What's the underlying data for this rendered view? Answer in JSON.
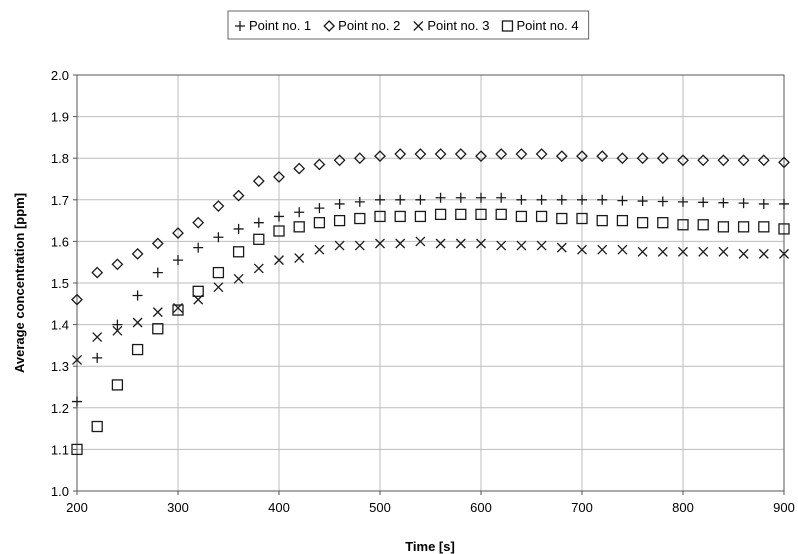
{
  "chart_data": {
    "type": "scatter",
    "title": "",
    "xlabel": "Time [s]",
    "ylabel": "Average concentration [ppm]",
    "xlim": [
      200,
      900
    ],
    "ylim": [
      1.0,
      2.0
    ],
    "x_ticks": [
      "200",
      "300",
      "400",
      "500",
      "600",
      "700",
      "800",
      "900"
    ],
    "y_ticks": [
      "1.0",
      "1.1",
      "1.2",
      "1.3",
      "1.4",
      "1.5",
      "1.6",
      "1.7",
      "1.8",
      "1.9",
      "2.0"
    ],
    "grid": true,
    "legend_position": "top",
    "x": [
      200,
      220,
      240,
      260,
      280,
      300,
      320,
      340,
      360,
      380,
      400,
      420,
      440,
      460,
      480,
      500,
      520,
      540,
      560,
      580,
      600,
      620,
      640,
      660,
      680,
      700,
      720,
      740,
      760,
      780,
      800,
      820,
      840,
      860,
      880,
      900
    ],
    "series": [
      {
        "name": "Point no. 1",
        "marker": "plus",
        "values": [
          1.215,
          1.32,
          1.4,
          1.47,
          1.525,
          1.555,
          1.585,
          1.61,
          1.63,
          1.645,
          1.66,
          1.67,
          1.68,
          1.69,
          1.695,
          1.7,
          1.7,
          1.7,
          1.705,
          1.705,
          1.705,
          1.705,
          1.7,
          1.7,
          1.7,
          1.7,
          1.7,
          1.698,
          1.697,
          1.696,
          1.695,
          1.694,
          1.693,
          1.692,
          1.69,
          1.69
        ]
      },
      {
        "name": "Point no. 2",
        "marker": "diamond",
        "values": [
          1.46,
          1.525,
          1.545,
          1.57,
          1.595,
          1.62,
          1.645,
          1.685,
          1.71,
          1.745,
          1.755,
          1.775,
          1.785,
          1.795,
          1.8,
          1.805,
          1.81,
          1.81,
          1.81,
          1.81,
          1.805,
          1.81,
          1.81,
          1.81,
          1.805,
          1.805,
          1.805,
          1.8,
          1.8,
          1.8,
          1.795,
          1.795,
          1.795,
          1.795,
          1.795,
          1.79
        ]
      },
      {
        "name": "Point no. 3",
        "marker": "cross",
        "values": [
          1.315,
          1.37,
          1.385,
          1.405,
          1.43,
          1.44,
          1.46,
          1.49,
          1.51,
          1.535,
          1.555,
          1.56,
          1.58,
          1.59,
          1.59,
          1.595,
          1.595,
          1.6,
          1.595,
          1.595,
          1.595,
          1.59,
          1.59,
          1.59,
          1.585,
          1.58,
          1.58,
          1.58,
          1.575,
          1.575,
          1.575,
          1.575,
          1.575,
          1.57,
          1.57,
          1.57
        ]
      },
      {
        "name": "Point no. 4",
        "marker": "square",
        "values": [
          1.1,
          1.155,
          1.255,
          1.34,
          1.39,
          1.435,
          1.48,
          1.525,
          1.575,
          1.605,
          1.625,
          1.635,
          1.645,
          1.65,
          1.655,
          1.66,
          1.66,
          1.66,
          1.665,
          1.665,
          1.665,
          1.665,
          1.66,
          1.66,
          1.655,
          1.655,
          1.65,
          1.65,
          1.645,
          1.645,
          1.64,
          1.64,
          1.635,
          1.635,
          1.635,
          1.63
        ]
      }
    ]
  }
}
